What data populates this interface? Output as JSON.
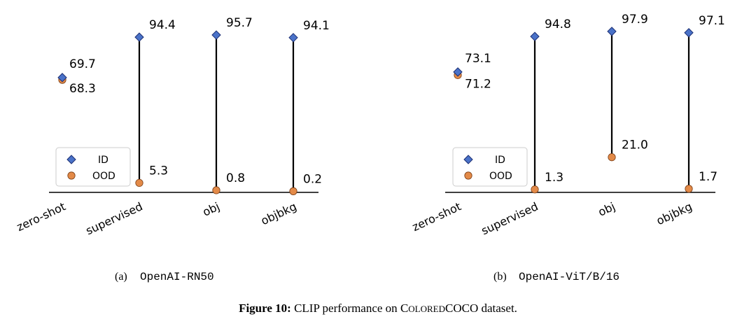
{
  "chart_data": [
    {
      "type": "dumbbell",
      "panel_label": "(a)",
      "caption_model": "OpenAI-RN50",
      "categories": [
        "zero-shot",
        "supervised",
        "obj",
        "objbkg"
      ],
      "series": [
        {
          "name": "ID",
          "values": [
            69.7,
            94.4,
            95.7,
            94.1
          ]
        },
        {
          "name": "OOD",
          "values": [
            68.3,
            5.3,
            0.8,
            0.2
          ]
        }
      ],
      "legend": [
        "ID",
        "OOD"
      ],
      "legend_position": "lower-left",
      "ylim": [
        -0.5,
        100
      ]
    },
    {
      "type": "dumbbell",
      "panel_label": "(b)",
      "caption_model": "OpenAI-ViT/B/16",
      "categories": [
        "zero-shot",
        "supervised",
        "obj",
        "objbkg"
      ],
      "series": [
        {
          "name": "ID",
          "values": [
            73.1,
            94.8,
            97.9,
            97.1
          ]
        },
        {
          "name": "OOD",
          "values": [
            71.2,
            1.3,
            21.0,
            1.7
          ]
        }
      ],
      "legend": [
        "ID",
        "OOD"
      ],
      "legend_position": "lower-left",
      "ylim": [
        -0.5,
        100
      ]
    }
  ],
  "figure_caption": {
    "label": "Figure 10:",
    "text_before": "CLIP performance on ",
    "dataset_c": "C",
    "dataset_smallcaps": "OLORED",
    "dataset_rest": "COCO",
    "text_after": " dataset."
  },
  "colors": {
    "id_fill": "#4a72c8",
    "id_stroke": "#1c2f73",
    "ood_fill": "#e38a48",
    "ood_stroke": "#7a3d14",
    "line": "#000000"
  }
}
